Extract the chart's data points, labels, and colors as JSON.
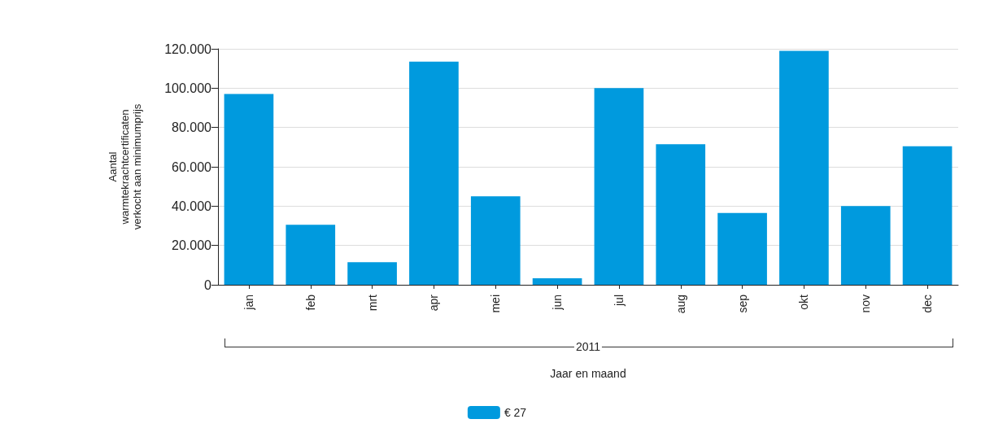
{
  "chart_data": {
    "type": "bar",
    "xlabel": "Jaar en maand",
    "ylabel": "Aantal warmtekrachtcertificaten verkocht aan minimumprijs",
    "annotations": [
      "2011"
    ],
    "categories": [
      "jan",
      "feb",
      "mrt",
      "apr",
      "mei",
      "jun",
      "jul",
      "aug",
      "sep",
      "okt",
      "nov",
      "dec"
    ],
    "series": [
      {
        "name": "€ 27",
        "color": "#009ade",
        "values": [
          97000,
          30500,
          11500,
          113500,
          45000,
          3300,
          100000,
          71500,
          36500,
          119000,
          40000,
          70500
        ]
      }
    ],
    "ylim": [
      0,
      120000
    ],
    "yticks": [
      {
        "value": 0,
        "label": "0"
      },
      {
        "value": 20000,
        "label": "20.000"
      },
      {
        "value": 40000,
        "label": "40.000"
      },
      {
        "value": 60000,
        "label": "60.000"
      },
      {
        "value": 80000,
        "label": "80.000"
      },
      {
        "value": 100000,
        "label": "100.000"
      },
      {
        "value": 120000,
        "label": "120.000"
      }
    ],
    "grid": "y",
    "legend": "bottom"
  }
}
